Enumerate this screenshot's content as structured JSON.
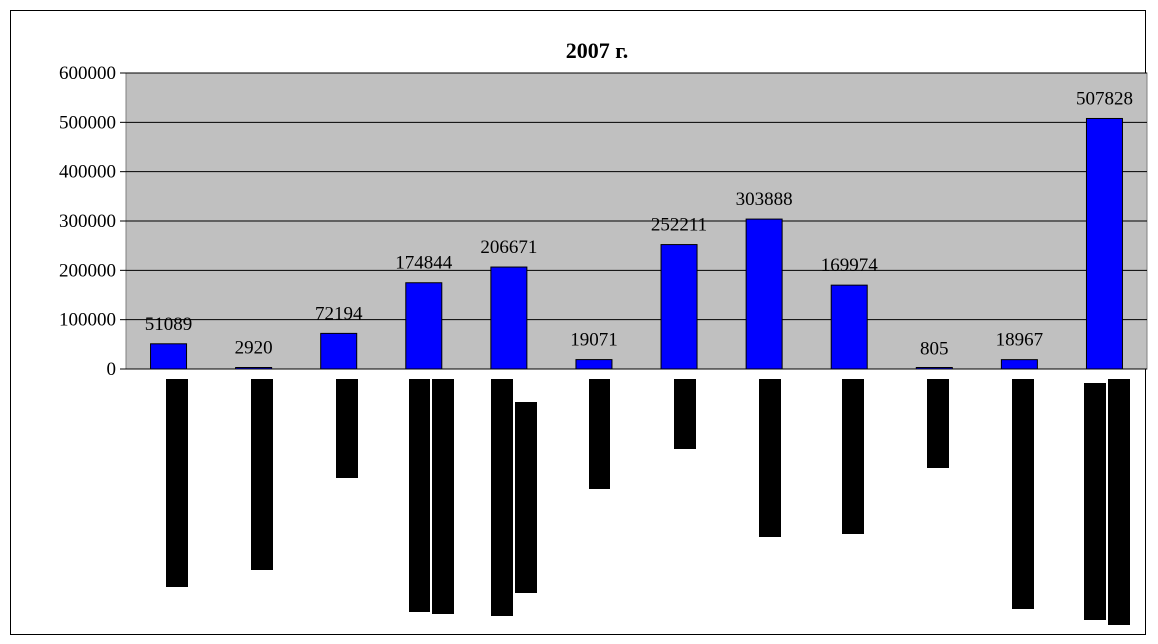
{
  "chart_data": {
    "type": "bar",
    "title": "2007 г.",
    "xlabel": "",
    "ylabel": "",
    "ylim": [
      0,
      600000
    ],
    "y_ticks": [
      "600000",
      "500000",
      "400000",
      "300000",
      "200000",
      "100000",
      "0"
    ],
    "grid": true,
    "legend": "none",
    "plot_background": "#c0c0c0",
    "bar_color": "#0000ff",
    "values": [
      51089,
      2920,
      72194,
      174844,
      206671,
      19071,
      252211,
      303888,
      169974,
      805,
      18967,
      507828
    ],
    "data_labels": [
      "51089",
      "2920",
      "72194",
      "174844",
      "206671",
      "19071",
      "252211",
      "303888",
      "169974",
      "805",
      "18967",
      "507828"
    ]
  }
}
